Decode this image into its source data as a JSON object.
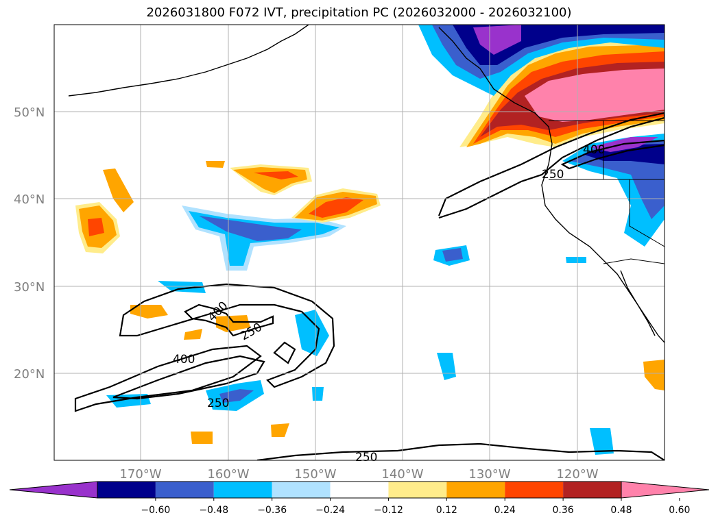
{
  "title": "2026031800 F072 IVT, precipitation PC (2026032000 - 2026032100)",
  "lat_labels": [
    "50°N",
    "40°N",
    "30°N",
    "20°N"
  ],
  "lon_labels": [
    "170°W",
    "160°W",
    "150°W",
    "140°W",
    "130°W",
    "120°W"
  ],
  "contour_labels": [
    "400",
    "250",
    "400",
    "250",
    "400",
    "250",
    "250"
  ],
  "colorbar": {
    "ticks": [
      "−0.60",
      "−0.48",
      "−0.36",
      "−0.24",
      "−0.12",
      "0.12",
      "0.24",
      "0.36",
      "0.48",
      "0.60"
    ],
    "colors": [
      "#9932cc",
      "#00008b",
      "#3a5fcd",
      "#00bfff",
      "#b0e2ff",
      "#ffffff",
      "#ffec8b",
      "#ffa500",
      "#ff4500",
      "#b22222",
      "#ff82ab"
    ]
  }
}
